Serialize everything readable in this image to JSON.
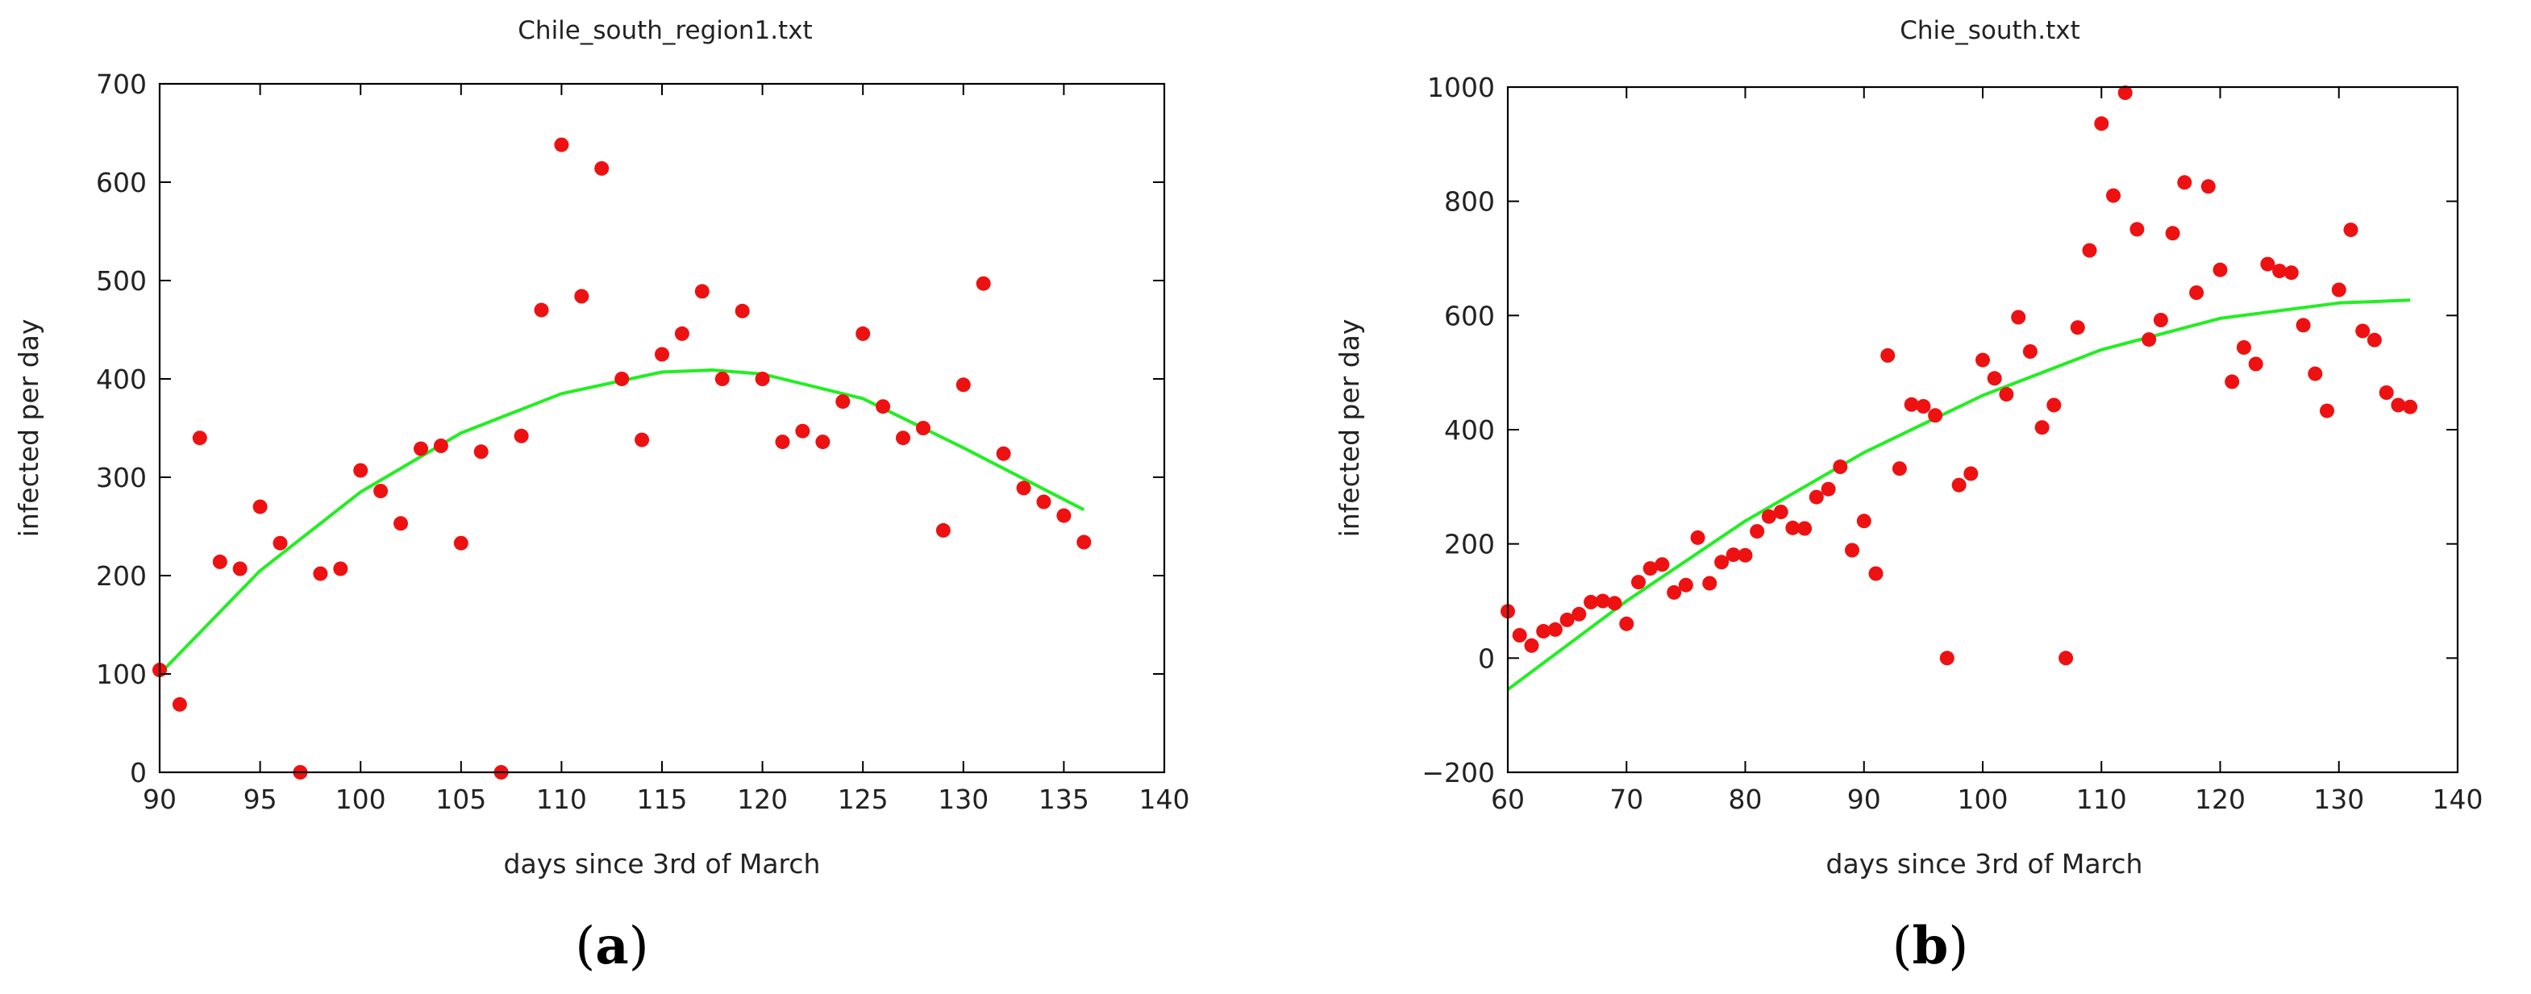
{
  "colors": {
    "points": "#ee1111",
    "fit": "#22ee22",
    "axis": "#000000",
    "text": "#222222"
  },
  "chart_data": [
    {
      "type": "scatter",
      "title": "Chile_south_region1.txt",
      "xlabel": "days since 3rd of March",
      "ylabel": "infected per day",
      "xlim": [
        90,
        140
      ],
      "ylim": [
        0,
        700
      ],
      "xticks": [
        "90",
        "95",
        "100",
        "105",
        "110",
        "115",
        "120",
        "125",
        "130",
        "135",
        "140"
      ],
      "yticks": [
        "0",
        "100",
        "200",
        "300",
        "400",
        "500",
        "600",
        "700"
      ],
      "grid": false,
      "panel_label": {
        "open": "(",
        "letter": "a",
        "close": ")"
      },
      "points": {
        "x": [
          90,
          91,
          92,
          93,
          94,
          95,
          96,
          97,
          98,
          99,
          100,
          101,
          102,
          103,
          104,
          105,
          106,
          107,
          108,
          109,
          110,
          111,
          112,
          113,
          114,
          115,
          116,
          117,
          118,
          119,
          120,
          121,
          122,
          123,
          124,
          125,
          126,
          127,
          128,
          129,
          130,
          131,
          132,
          133,
          134,
          135,
          136
        ],
        "y": [
          104,
          69,
          340,
          214,
          207,
          270,
          233,
          0,
          202,
          207,
          307,
          286,
          253,
          329,
          332,
          233,
          326,
          0,
          342,
          470,
          638,
          484,
          614,
          400,
          338,
          425,
          446,
          489,
          400,
          469,
          400,
          336,
          347,
          336,
          377,
          446,
          372,
          340,
          350,
          246,
          394,
          497,
          324,
          289,
          275,
          261,
          234
        ]
      },
      "fit": {
        "x": [
          90,
          95,
          100,
          105,
          110,
          115,
          117.5,
          120,
          125,
          130,
          136
        ],
        "y": [
          100,
          205,
          285,
          345,
          385,
          407,
          409,
          405,
          380,
          330,
          267
        ]
      }
    },
    {
      "type": "scatter",
      "title": "Chie_south.txt",
      "xlabel": "days since 3rd of March",
      "ylabel": "infected per day",
      "xlim": [
        60,
        140
      ],
      "ylim": [
        -200,
        1000
      ],
      "xticks": [
        "60",
        "70",
        "80",
        "90",
        "100",
        "110",
        "120",
        "130",
        "140"
      ],
      "yticks": [
        "−200",
        "0",
        "200",
        "400",
        "600",
        "800",
        "1000"
      ],
      "grid": false,
      "panel_label": {
        "open": "(",
        "letter": "b",
        "close": ")"
      },
      "points": {
        "x": [
          60,
          61,
          62,
          63,
          64,
          65,
          66,
          67,
          68,
          69,
          70,
          71,
          72,
          73,
          74,
          75,
          76,
          77,
          78,
          79,
          80,
          81,
          82,
          83,
          84,
          85,
          86,
          87,
          88,
          89,
          90,
          91,
          92,
          93,
          94,
          95,
          96,
          97,
          98,
          99,
          100,
          101,
          102,
          103,
          104,
          105,
          106,
          107,
          108,
          109,
          110,
          111,
          112,
          113,
          114,
          115,
          116,
          117,
          118,
          119,
          120,
          121,
          122,
          123,
          124,
          125,
          126,
          127,
          128,
          129,
          130,
          131,
          132,
          133,
          134,
          135,
          136
        ],
        "y": [
          82,
          40,
          22,
          47,
          50,
          67,
          77,
          98,
          100,
          96,
          60,
          133,
          157,
          164,
          115,
          128,
          211,
          131,
          168,
          181,
          180,
          222,
          248,
          256,
          228,
          227,
          282,
          296,
          335,
          189,
          240,
          148,
          530,
          332,
          444,
          441,
          425,
          0,
          303,
          323,
          522,
          490,
          462,
          597,
          537,
          404,
          443,
          0,
          579,
          714,
          936,
          810,
          990,
          751,
          558,
          592,
          744,
          833,
          640,
          826,
          680,
          484,
          544,
          515,
          690,
          678,
          675,
          583,
          498,
          433,
          645,
          750,
          573,
          557,
          465,
          443,
          440
        ]
      },
      "fit": {
        "x": [
          60,
          70,
          80,
          90,
          100,
          110,
          120,
          130,
          136
        ],
        "y": [
          -55,
          100,
          240,
          360,
          460,
          540,
          595,
          622,
          627
        ]
      }
    }
  ]
}
